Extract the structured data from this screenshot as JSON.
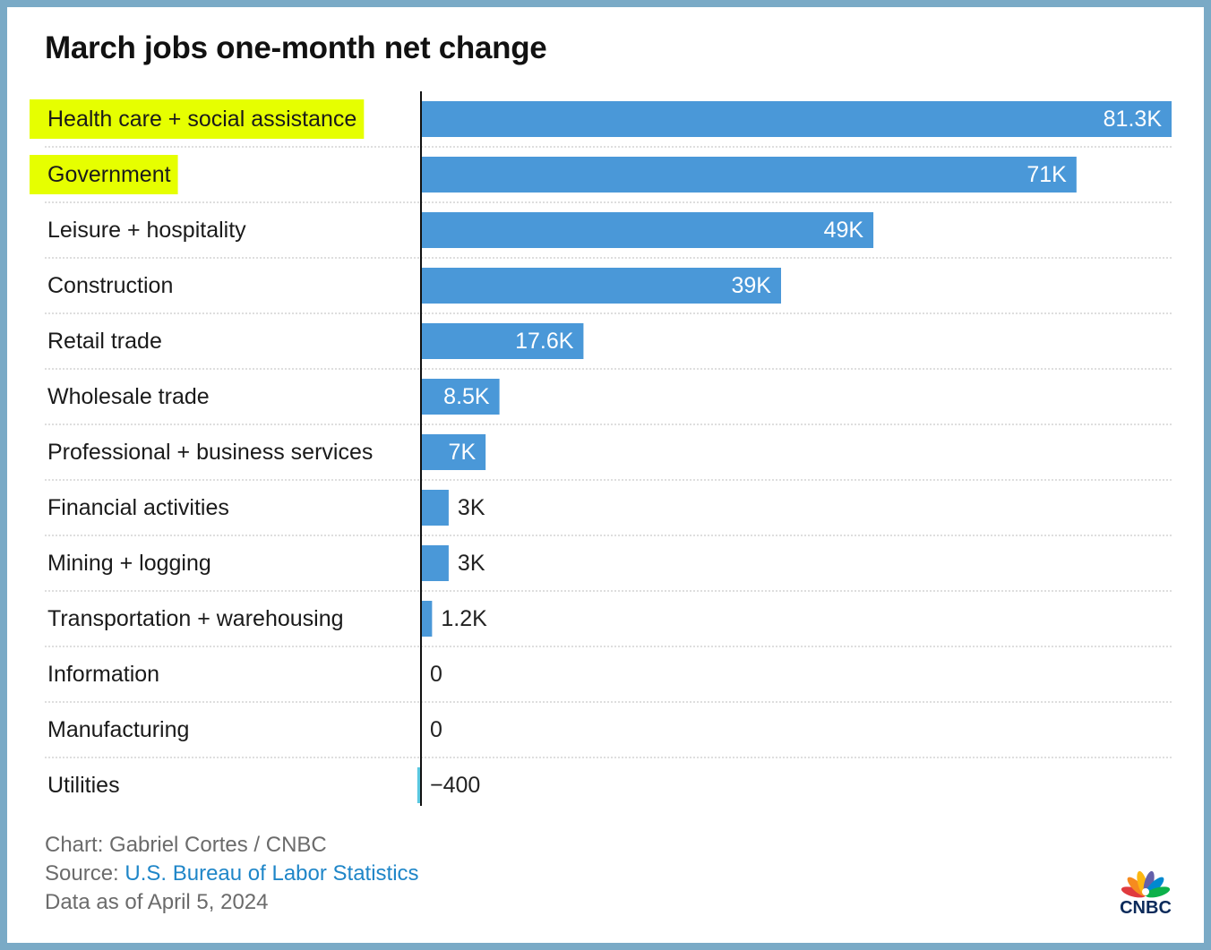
{
  "title": "March jobs one-month net change",
  "chart_data": {
    "type": "bar",
    "orientation": "horizontal",
    "title": "March jobs one-month net change",
    "categories": [
      "Health care + social assistance",
      "Government",
      "Leisure + hospitality",
      "Construction",
      "Retail trade",
      "Wholesale trade",
      "Professional + business services",
      "Financial activities",
      "Mining + logging",
      "Transportation + warehousing",
      "Information",
      "Manufacturing",
      "Utilities"
    ],
    "values": [
      81300,
      71000,
      49000,
      39000,
      17600,
      8500,
      7000,
      3000,
      3000,
      1200,
      0,
      0,
      -400
    ],
    "value_labels": [
      "81.3K",
      "71K",
      "49K",
      "39K",
      "17.6K",
      "8.5K",
      "7K",
      "3K",
      "3K",
      "1.2K",
      "0",
      "0",
      "−400"
    ],
    "highlighted": [
      "Health care + social assistance",
      "Government"
    ],
    "xlim": [
      -400,
      81300
    ],
    "grid": "dotted row separators",
    "colors": {
      "positive_bar": "#4a98d8",
      "negative_bar": "#5bc8e0",
      "highlight": "#e6ff00",
      "axis": "#111111",
      "label_inside": "#ffffff",
      "label_outside": "#222222"
    }
  },
  "footer": {
    "credit": "Chart: Gabriel Cortes / CNBC",
    "source_prefix": "Source: ",
    "source_link": "U.S. Bureau of Labor Statistics",
    "data_date": "Data as of April 5, 2024"
  },
  "logo": {
    "text": "CNBC",
    "icon": "peacock-icon"
  }
}
